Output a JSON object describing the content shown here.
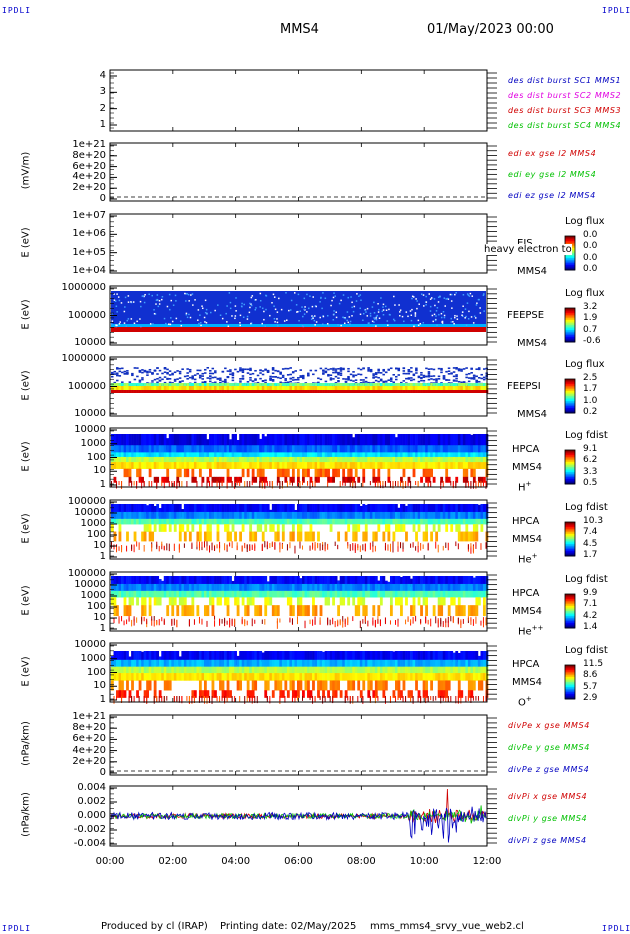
{
  "corners": {
    "tl": "IPDLI",
    "tr": "IPDLI",
    "bl": "IPDLI",
    "br": "IPDLI"
  },
  "header": {
    "mission": "MMS4",
    "datetime": "01/May/2023 00:00"
  },
  "x_axis": {
    "ticks": [
      "00:00",
      "02:00",
      "04:00",
      "06:00",
      "08:00",
      "10:00",
      "12:00"
    ]
  },
  "footer": {
    "produced": "Produced by cl (IRAP)",
    "printing": "Printing date: 02/May/2025",
    "file": "mms_mms4_srvy_vue_web2.cl"
  },
  "colors": {
    "bg_spec": "#0000b4",
    "red": "#d00000",
    "green": "#00c000",
    "blue": "#0000c0",
    "magenta": "#e000e0"
  },
  "chart_data": [
    {
      "type": "line",
      "panel": "burst",
      "ylabel": "",
      "yticks": [
        "4",
        "3",
        "2",
        "1"
      ],
      "series": [
        {
          "name": "des dist burst SC1 MMS1",
          "color": "#0000c0"
        },
        {
          "name": "des dist burst SC2 MMS2",
          "color": "#e000e0"
        },
        {
          "name": "des dist burst SC3 MMS3",
          "color": "#d00000"
        },
        {
          "name": "des dist burst SC4 MMS4",
          "color": "#00c000"
        }
      ]
    },
    {
      "type": "line",
      "panel": "edi",
      "ylabel": "(mV/m)",
      "yticks": [
        "1e+21",
        "8e+20",
        "6e+20",
        "4e+20",
        "2e+20",
        "0"
      ],
      "series": [
        {
          "name": "edi ex gse l2 MMS4",
          "color": "#d00000"
        },
        {
          "name": "edi ey gse l2 MMS4",
          "color": "#00c000"
        },
        {
          "name": "edi ez gse l2 MMS4",
          "color": "#0000c0"
        }
      ]
    },
    {
      "type": "heatmap",
      "panel": "eis",
      "ylabel": "E (eV)",
      "yticks": [
        "1e+07",
        "1e+06",
        "1e+05",
        "1e+04"
      ],
      "labels": [
        "EIS",
        "MMS4"
      ],
      "overlay": "heavy electron to",
      "colorbar": {
        "title": "Log flux",
        "values": [
          "0.0",
          "0.0",
          "0.0",
          "0.0"
        ]
      }
    },
    {
      "type": "heatmap",
      "panel": "feepse",
      "ylabel": "E (eV)",
      "yticks": [
        "1000000",
        "100000",
        "10000"
      ],
      "labels": [
        "FEEPSE",
        "MMS4"
      ],
      "colorbar": {
        "title": "Log flux",
        "values": [
          "3.2",
          "1.9",
          "0.7",
          "-0.6"
        ]
      }
    },
    {
      "type": "heatmap",
      "panel": "feepsi",
      "ylabel": "E (eV)",
      "yticks": [
        "1000000",
        "100000",
        "10000"
      ],
      "labels": [
        "FEEPSI",
        "MMS4"
      ],
      "colorbar": {
        "title": "Log flux",
        "values": [
          "2.5",
          "1.7",
          "1.0",
          "0.2"
        ]
      }
    },
    {
      "type": "heatmap",
      "panel": "hpca_h",
      "ylabel": "E (eV)",
      "yticks": [
        "10000",
        "1000",
        "100",
        "10",
        "1"
      ],
      "labels": [
        "HPCA",
        "MMS4"
      ],
      "species": "H",
      "sup": "+",
      "colorbar": {
        "title": "Log fdist",
        "values": [
          "9.1",
          "6.2",
          "3.3",
          "0.5"
        ]
      }
    },
    {
      "type": "heatmap",
      "panel": "hpca_he",
      "ylabel": "E (eV)",
      "yticks": [
        "100000",
        "10000",
        "1000",
        "100",
        "10",
        "1"
      ],
      "labels": [
        "HPCA",
        "MMS4"
      ],
      "species": "He",
      "sup": "+",
      "colorbar": {
        "title": "Log fdist",
        "values": [
          "10.3",
          "7.4",
          "4.5",
          "1.7"
        ]
      }
    },
    {
      "type": "heatmap",
      "panel": "hpca_hepp",
      "ylabel": "E (eV)",
      "yticks": [
        "100000",
        "10000",
        "1000",
        "100",
        "10",
        "1"
      ],
      "labels": [
        "HPCA",
        "MMS4"
      ],
      "species": "He",
      "sup": "++",
      "colorbar": {
        "title": "Log fdist",
        "values": [
          "9.9",
          "7.1",
          "4.2",
          "1.4"
        ]
      }
    },
    {
      "type": "heatmap",
      "panel": "hpca_o",
      "ylabel": "E (eV)",
      "yticks": [
        "10000",
        "1000",
        "100",
        "10",
        "1"
      ],
      "labels": [
        "HPCA",
        "MMS4"
      ],
      "species": "O",
      "sup": "+",
      "colorbar": {
        "title": "Log fdist",
        "values": [
          "11.5",
          "8.6",
          "5.7",
          "2.9"
        ]
      }
    },
    {
      "type": "line",
      "panel": "divpe",
      "ylabel": "(nPa/km)",
      "yticks": [
        "1e+21",
        "8e+20",
        "6e+20",
        "4e+20",
        "2e+20",
        "0"
      ],
      "series": [
        {
          "name": "divPe x gse MMS4",
          "color": "#d00000"
        },
        {
          "name": "divPe y gse MMS4",
          "color": "#00c000"
        },
        {
          "name": "divPe z gse MMS4",
          "color": "#0000c0"
        }
      ]
    },
    {
      "type": "line",
      "panel": "divpi",
      "ylabel": "(nPa/km)",
      "yticks": [
        "0.004",
        "0.002",
        "0.000",
        "-0.002",
        "-0.004"
      ],
      "ylim": [
        -0.005,
        0.005
      ],
      "series": [
        {
          "name": "divPi x gse MMS4",
          "color": "#d00000"
        },
        {
          "name": "divPi y gse MMS4",
          "color": "#00c000"
        },
        {
          "name": "divPi z gse MMS4",
          "color": "#0000c0"
        }
      ]
    }
  ]
}
